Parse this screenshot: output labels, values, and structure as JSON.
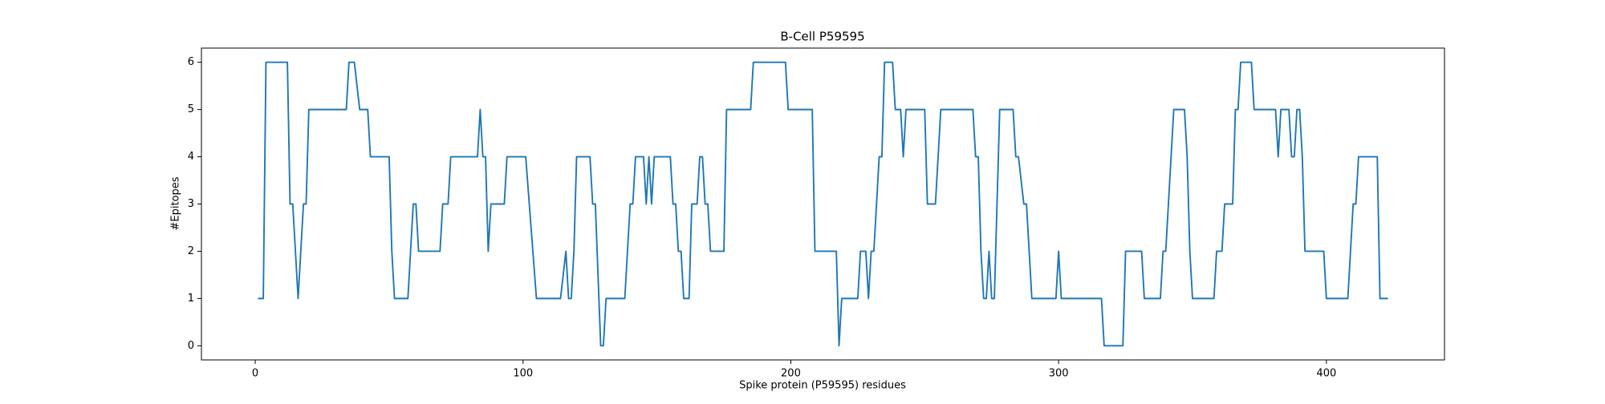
{
  "chart_data": {
    "type": "line",
    "title": "B-Cell P59595",
    "x_label": "Spike protein (P59595) residues",
    "y_label": "#Epitopes",
    "xlim": [
      -20.1,
      444.1
    ],
    "ylim": [
      -0.3,
      6.3
    ],
    "xticks": [
      0,
      100,
      200,
      300,
      400
    ],
    "yticks": [
      0,
      1,
      2,
      3,
      4,
      5,
      6
    ],
    "x": [
      1,
      3,
      4,
      12,
      13,
      14,
      16,
      18,
      19,
      20,
      34,
      35,
      37,
      39,
      42,
      43,
      50,
      51,
      52,
      57,
      59,
      60,
      61,
      69,
      70,
      72,
      73,
      83,
      84,
      85,
      86,
      87,
      88,
      93,
      94,
      101,
      105,
      114,
      116,
      117,
      118,
      119,
      120,
      125,
      126,
      127,
      129,
      130,
      131,
      138,
      140,
      141,
      142,
      145,
      146,
      147,
      148,
      149,
      155,
      156,
      157,
      158,
      159,
      160,
      162,
      163,
      165,
      166,
      167,
      168,
      169,
      170,
      175,
      176,
      185,
      186,
      198,
      199,
      208,
      209,
      217,
      218,
      219,
      225,
      226,
      228,
      229,
      230,
      231,
      233,
      234,
      235,
      238,
      239,
      241,
      242,
      243,
      250,
      251,
      254,
      256,
      268,
      269,
      270,
      271,
      272,
      273,
      274,
      275,
      276,
      278,
      283,
      284,
      285,
      287,
      288,
      290,
      299,
      300,
      301,
      316,
      317,
      324,
      325,
      331,
      332,
      338,
      339,
      340,
      343,
      347,
      348,
      349,
      350,
      358,
      359,
      361,
      362,
      365,
      366,
      367,
      368,
      372,
      373,
      381,
      382,
      383,
      386,
      387,
      388,
      389,
      390,
      391,
      392,
      399,
      400,
      408,
      410,
      411,
      412,
      419,
      420,
      423
    ],
    "series": [
      {
        "color": "#1f77b4",
        "values": [
          1,
          1,
          6,
          6,
          3,
          3,
          1,
          3,
          3,
          5,
          5,
          6,
          6,
          5,
          5,
          4,
          4,
          2,
          1,
          1,
          3,
          3,
          2,
          2,
          3,
          3,
          4,
          4,
          5,
          4,
          4,
          2,
          3,
          3,
          4,
          4,
          1,
          1,
          2,
          1,
          1,
          2,
          4,
          4,
          3,
          3,
          0,
          0,
          1,
          1,
          3,
          3,
          4,
          4,
          3,
          4,
          3,
          4,
          4,
          3,
          3,
          2,
          2,
          1,
          1,
          3,
          3,
          4,
          4,
          3,
          3,
          2,
          2,
          5,
          5,
          6,
          6,
          5,
          5,
          2,
          2,
          0,
          1,
          1,
          2,
          2,
          1,
          2,
          2,
          4,
          4,
          6,
          6,
          5,
          5,
          4,
          5,
          5,
          3,
          3,
          5,
          5,
          4,
          4,
          2,
          1,
          1,
          2,
          1,
          1,
          5,
          5,
          4,
          4,
          3,
          3,
          1,
          1,
          2,
          1,
          1,
          0,
          0,
          2,
          2,
          1,
          1,
          2,
          2,
          5,
          5,
          4,
          2,
          1,
          1,
          2,
          2,
          3,
          3,
          5,
          5,
          6,
          6,
          5,
          5,
          4,
          5,
          5,
          4,
          4,
          5,
          5,
          4,
          2,
          2,
          1,
          1,
          3,
          3,
          4,
          4,
          1,
          1
        ]
      }
    ]
  }
}
